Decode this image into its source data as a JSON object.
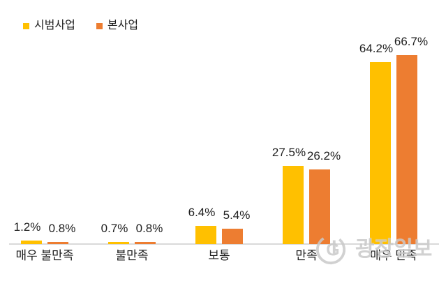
{
  "chart_data": {
    "type": "bar",
    "categories": [
      "매우 불만족",
      "불만족",
      "보통",
      "만족",
      "매우 만족"
    ],
    "series": [
      {
        "name": "시범사업",
        "color": "#FFC000",
        "values": [
          1.2,
          0.7,
          6.4,
          27.5,
          64.2
        ]
      },
      {
        "name": "본사업",
        "color": "#ED7D31",
        "values": [
          0.8,
          0.8,
          5.4,
          26.2,
          66.7
        ]
      }
    ],
    "value_label_format": "percent_one_decimal",
    "title": "",
    "xlabel": "",
    "ylabel": "",
    "ylim": [
      0,
      70
    ],
    "grid": false,
    "y_axis_visible": false,
    "legend_position": "top-left",
    "axis_line_color": "#D9D9D9",
    "background_color": "#FFFFFF",
    "label_color": "#1F1F1F"
  },
  "watermark": {
    "text": "광장일보",
    "logo": "gwangjang-ilbo-logo",
    "color": "#C9C9C9"
  }
}
